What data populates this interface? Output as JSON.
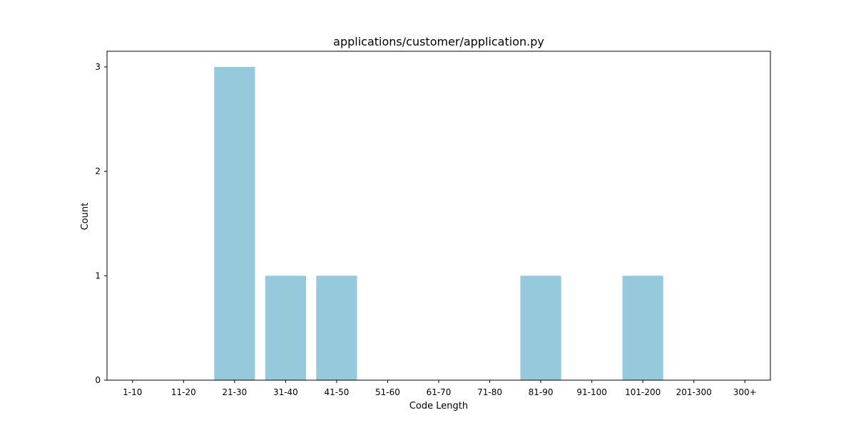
{
  "chart_data": {
    "type": "bar",
    "title": "applications/customer/application.py",
    "xlabel": "Code Length",
    "ylabel": "Count",
    "categories": [
      "1-10",
      "11-20",
      "21-30",
      "31-40",
      "41-50",
      "51-60",
      "61-70",
      "71-80",
      "81-90",
      "91-100",
      "101-200",
      "201-300",
      "300+"
    ],
    "values": [
      0,
      0,
      3,
      1,
      1,
      0,
      0,
      0,
      1,
      0,
      1,
      0,
      0
    ],
    "ylim": [
      0,
      3.15
    ],
    "yticks": [
      0,
      1,
      2,
      3
    ],
    "bar_color": "#96c9dc",
    "grid": false,
    "legend": false
  }
}
